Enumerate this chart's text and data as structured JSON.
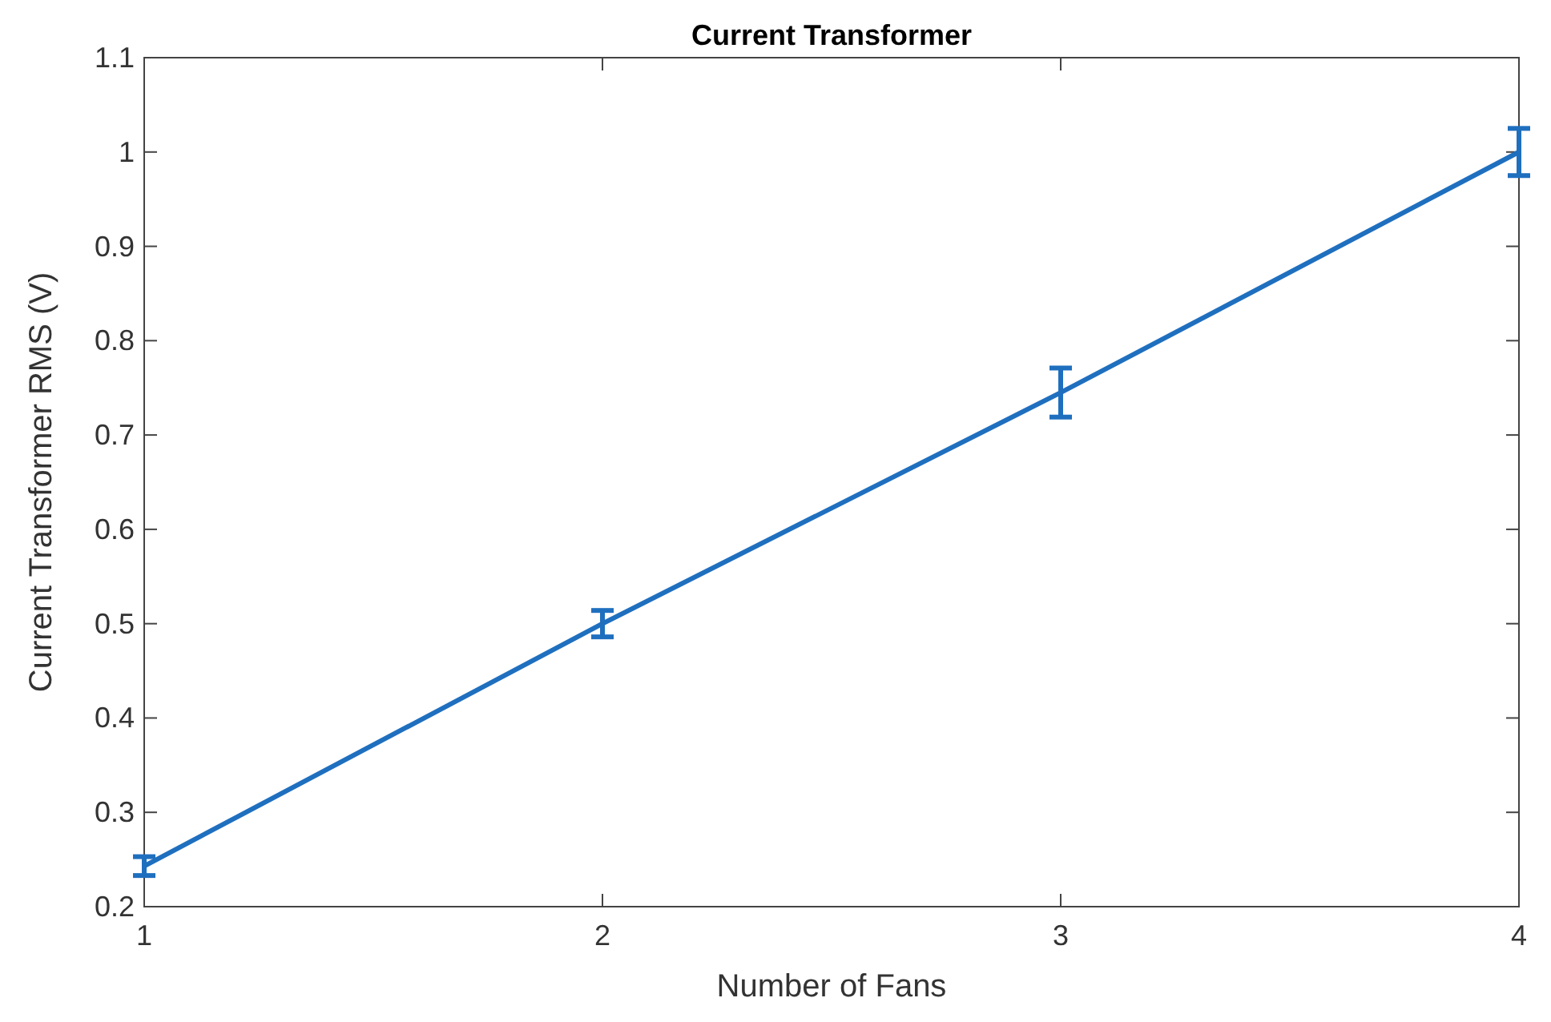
{
  "chart_data": {
    "type": "line",
    "title": "Current Transformer",
    "xlabel": "Number of Fans",
    "ylabel": "Current Transformer RMS (V)",
    "x": [
      1,
      2,
      3,
      4
    ],
    "series": [
      {
        "color": "#1f6fbf",
        "values": [
          0.243,
          0.5,
          0.745,
          1.0
        ],
        "errors": [
          0.01,
          0.014,
          0.026,
          0.025
        ]
      }
    ],
    "xlim": [
      1,
      4
    ],
    "xticks": [
      1,
      2,
      3,
      4
    ],
    "ylim": [
      0.2,
      1.1
    ],
    "yticks": [
      0.2,
      0.3,
      0.4,
      0.5,
      0.6,
      0.7,
      0.8,
      0.9,
      1,
      1.1
    ],
    "marker": "none",
    "line_style": "solid"
  }
}
